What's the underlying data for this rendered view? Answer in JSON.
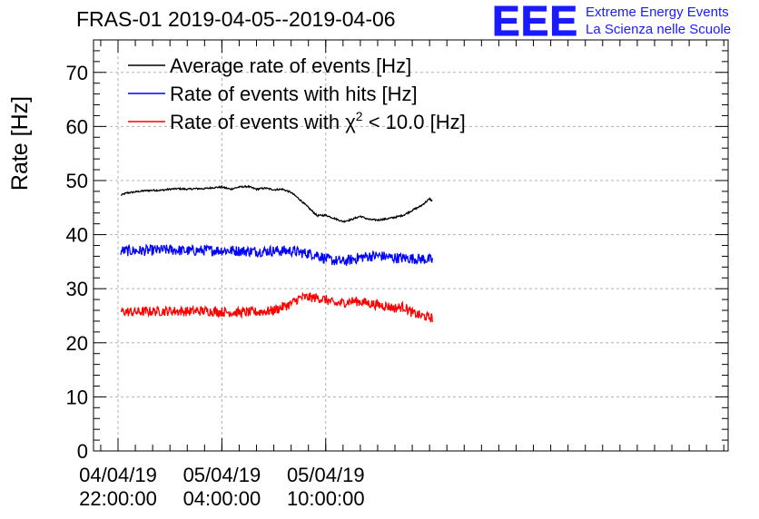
{
  "title": "FRAS-01 2019-04-05--2019-04-06",
  "logo": {
    "mark": "EEE",
    "line1": "Extreme Energy Events",
    "line2": "La Scienza nelle Scuole"
  },
  "colors": {
    "black": "#000000",
    "blue": "#0000ff",
    "red": "#ff0000",
    "grid": "#b0b0b0",
    "logo": "#1a1aff"
  },
  "chart_data": {
    "type": "line",
    "ylabel": "Rate [Hz]",
    "xlabel": "",
    "ylim": [
      0,
      76
    ],
    "xlim": [
      "2019-04-04 20:35",
      "2019-04-06 09:15"
    ],
    "yticks": [
      0,
      10,
      20,
      30,
      40,
      50,
      60,
      70
    ],
    "xticks": [
      {
        "line1": "04/04/19",
        "line2": "22:00:00",
        "x": "2019-04-04 22:00"
      },
      {
        "line1": "05/04/19",
        "line2": "04:00:00",
        "x": "2019-04-05 04:00"
      },
      {
        "line1": "05/04/19",
        "line2": "10:00:00",
        "x": "2019-04-05 10:00"
      }
    ],
    "grid": true,
    "legend_position": "top-left",
    "series": [
      {
        "name": "Average rate of events [Hz]",
        "color": "#000000",
        "noise": 0.15,
        "x": [
          "2019-04-04 22:10",
          "2019-04-04 22:30",
          "2019-04-04 23:00",
          "2019-04-04 23:30",
          "2019-04-05 00:00",
          "2019-04-05 00:30",
          "2019-04-05 01:00",
          "2019-04-05 01:30",
          "2019-04-05 02:00",
          "2019-04-05 02:30",
          "2019-04-05 03:00",
          "2019-04-05 03:30",
          "2019-04-05 04:00",
          "2019-04-05 04:30",
          "2019-04-05 05:00",
          "2019-04-05 05:30",
          "2019-04-05 06:00",
          "2019-04-05 06:30",
          "2019-04-05 07:00",
          "2019-04-05 07:30",
          "2019-04-05 08:00",
          "2019-04-05 08:30",
          "2019-04-05 09:00",
          "2019-04-05 09:30",
          "2019-04-05 10:00",
          "2019-04-05 10:30",
          "2019-04-05 11:00",
          "2019-04-05 11:30",
          "2019-04-05 12:00",
          "2019-04-05 12:30",
          "2019-04-05 13:00",
          "2019-04-05 13:30",
          "2019-04-05 14:00",
          "2019-04-05 14:30",
          "2019-04-05 15:00",
          "2019-04-05 15:30",
          "2019-04-05 16:00",
          "2019-04-05 16:10"
        ],
        "values": [
          47.3,
          47.7,
          47.9,
          48.1,
          48.2,
          48.2,
          48.4,
          48.5,
          48.4,
          48.5,
          48.5,
          48.7,
          48.8,
          48.4,
          48.8,
          48.9,
          48.4,
          48.6,
          48.3,
          48.4,
          47.8,
          46.5,
          45.0,
          43.5,
          43.6,
          43.0,
          42.4,
          42.8,
          43.4,
          42.8,
          42.7,
          42.9,
          43.2,
          43.6,
          44.5,
          45.3,
          46.6,
          46.2
        ]
      },
      {
        "name": "Rate of events with hits [Hz]",
        "color": "#0000ff",
        "noise": 1.0,
        "x": [
          "2019-04-04 22:10",
          "2019-04-04 23:00",
          "2019-04-05 00:00",
          "2019-04-05 01:00",
          "2019-04-05 02:00",
          "2019-04-05 03:00",
          "2019-04-05 04:00",
          "2019-04-05 05:00",
          "2019-04-05 06:00",
          "2019-04-05 07:00",
          "2019-04-05 08:00",
          "2019-04-05 08:30",
          "2019-04-05 09:00",
          "2019-04-05 09:30",
          "2019-04-05 10:00",
          "2019-04-05 10:30",
          "2019-04-05 11:00",
          "2019-04-05 11:30",
          "2019-04-05 12:00",
          "2019-04-05 12:30",
          "2019-04-05 13:00",
          "2019-04-05 14:00",
          "2019-04-05 15:00",
          "2019-04-05 16:00",
          "2019-04-05 16:10"
        ],
        "values": [
          37.0,
          37.0,
          37.1,
          37.2,
          37.0,
          37.1,
          37.1,
          37.0,
          36.9,
          37.0,
          37.0,
          36.7,
          36.5,
          36.3,
          35.5,
          35.2,
          35.0,
          35.4,
          35.8,
          36.0,
          36.1,
          35.7,
          35.6,
          35.4,
          35.2
        ]
      },
      {
        "name_prefix": "Rate of events with ",
        "name_symbol": "χ",
        "name_sup": "2",
        "name_suffix": " < 10.0 [Hz]",
        "color": "#ff0000",
        "noise": 0.9,
        "x": [
          "2019-04-04 22:10",
          "2019-04-04 23:00",
          "2019-04-05 00:00",
          "2019-04-05 01:00",
          "2019-04-05 02:00",
          "2019-04-05 03:00",
          "2019-04-05 04:00",
          "2019-04-05 05:00",
          "2019-04-05 06:00",
          "2019-04-05 06:30",
          "2019-04-05 07:00",
          "2019-04-05 07:30",
          "2019-04-05 08:00",
          "2019-04-05 08:30",
          "2019-04-05 09:00",
          "2019-04-05 09:30",
          "2019-04-05 10:00",
          "2019-04-05 10:30",
          "2019-04-05 11:00",
          "2019-04-05 11:30",
          "2019-04-05 12:00",
          "2019-04-05 12:30",
          "2019-04-05 13:00",
          "2019-04-05 13:30",
          "2019-04-05 14:00",
          "2019-04-05 14:30",
          "2019-04-05 15:00",
          "2019-04-05 15:30",
          "2019-04-05 16:00",
          "2019-04-05 16:10"
        ],
        "values": [
          25.8,
          25.7,
          25.8,
          25.9,
          25.8,
          25.9,
          25.7,
          25.6,
          25.7,
          25.8,
          26.0,
          26.6,
          27.2,
          28.3,
          28.4,
          28.3,
          28.0,
          27.2,
          27.4,
          27.7,
          27.6,
          27.3,
          27.0,
          26.8,
          26.4,
          26.7,
          25.5,
          25.0,
          24.7,
          24.6
        ]
      }
    ]
  }
}
